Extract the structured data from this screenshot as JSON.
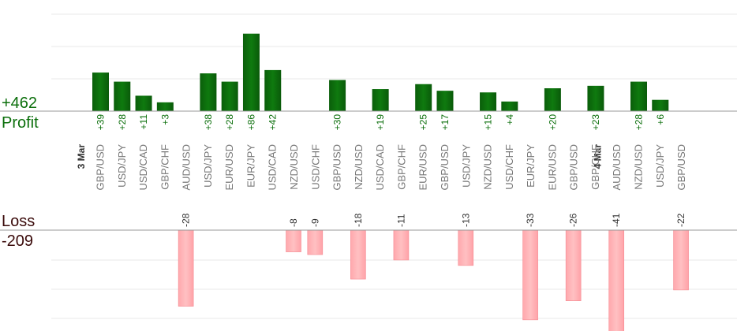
{
  "summary": {
    "profit_value": "+462",
    "profit_label": "Profit",
    "loss_label": "Loss",
    "loss_value": "-209"
  },
  "colors": {
    "profit_bar": "#0c6b0c",
    "loss_bar": "#ffb3b6",
    "profit_text": "#0a6e0a",
    "loss_text": "#3a0a0a",
    "pair_text": "#777777",
    "grid": "#e8e8e8"
  },
  "chart_data": {
    "type": "bar",
    "title": "",
    "date_markers": [
      {
        "label": "3 Mar",
        "before_index": 0
      },
      {
        "label": "4 Mar",
        "before_index": 24
      }
    ],
    "trades": [
      {
        "pair": "GBP/USD",
        "result": 39,
        "label": "+39"
      },
      {
        "pair": "USD/JPY",
        "result": 28,
        "label": "+28"
      },
      {
        "pair": "USD/CAD",
        "result": 11,
        "label": "+11"
      },
      {
        "pair": "GBP/CHF",
        "result": 3,
        "label": "+3"
      },
      {
        "pair": "AUD/USD",
        "result": -28,
        "label": "-28"
      },
      {
        "pair": "USD/JPY",
        "result": 38,
        "label": "+38"
      },
      {
        "pair": "EUR/USD",
        "result": 28,
        "label": "+28"
      },
      {
        "pair": "EUR/JPY",
        "result": 86,
        "label": "+86"
      },
      {
        "pair": "USD/CAD",
        "result": 42,
        "label": "+42"
      },
      {
        "pair": "NZD/USD",
        "result": -8,
        "label": "-8"
      },
      {
        "pair": "USD/CHF",
        "result": -9,
        "label": "-9"
      },
      {
        "pair": "GBP/USD",
        "result": 30,
        "label": "+30"
      },
      {
        "pair": "NZD/USD",
        "result": -18,
        "label": "-18"
      },
      {
        "pair": "USD/CAD",
        "result": 19,
        "label": "+19"
      },
      {
        "pair": "GBP/CHF",
        "result": -11,
        "label": "-11"
      },
      {
        "pair": "EUR/USD",
        "result": 25,
        "label": "+25"
      },
      {
        "pair": "GBP/USD",
        "result": 17,
        "label": "+17"
      },
      {
        "pair": "USD/JPY",
        "result": -13,
        "label": "-13"
      },
      {
        "pair": "NZD/USD",
        "result": 15,
        "label": "+15"
      },
      {
        "pair": "USD/CHF",
        "result": 4,
        "label": "+4"
      },
      {
        "pair": "EUR/JPY",
        "result": -33,
        "label": "-33"
      },
      {
        "pair": "EUR/USD",
        "result": 20,
        "label": "+20"
      },
      {
        "pair": "GBP/USD",
        "result": -26,
        "label": "-26"
      },
      {
        "pair": "GBP/CHF",
        "result": 23,
        "label": "+23"
      },
      {
        "pair": "AUD/USD",
        "result": -41,
        "label": "-41"
      },
      {
        "pair": "NZD/USD",
        "result": 28,
        "label": "+28"
      },
      {
        "pair": "USD/JPY",
        "result": 6,
        "label": "+6"
      },
      {
        "pair": "GBP/USD",
        "result": -22,
        "label": "-22"
      }
    ],
    "grid": true
  }
}
